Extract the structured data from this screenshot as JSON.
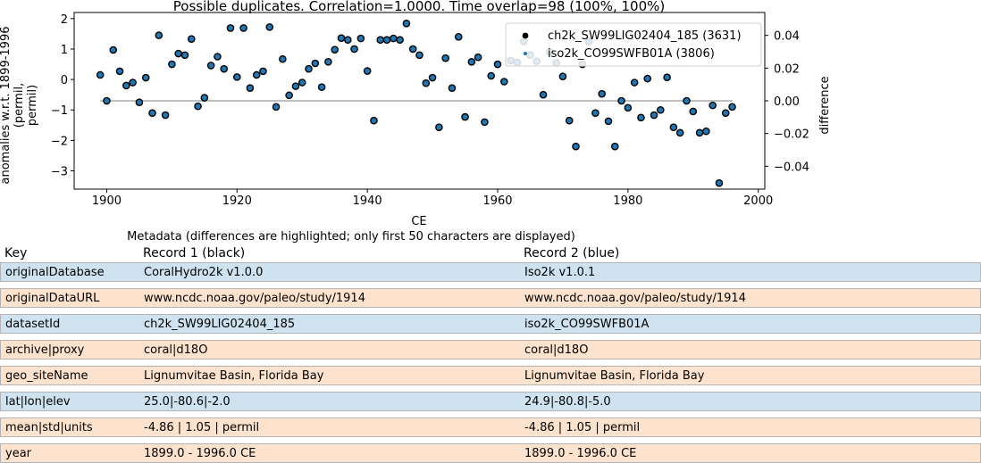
{
  "chart_data": {
    "type": "scatter",
    "title": "Possible duplicates. Correlation=1.0000. Time overlap=98 (100%, 100%)",
    "xlabel": "CE",
    "ylabel": "anomalies w.r.t. 1899-1996 (permil, permil)",
    "ylabel_right": "difference",
    "xlim": [
      1895,
      2001
    ],
    "ylim": [
      -3.6,
      2.2
    ],
    "ylim_right": [
      -0.054,
      0.054
    ],
    "x_ticks": [
      1900,
      1920,
      1940,
      1960,
      1980,
      2000
    ],
    "y_ticks": [
      2,
      1,
      0,
      -1,
      -2,
      -3
    ],
    "y_ticks_right": [
      0.04,
      0.02,
      0.0,
      -0.02,
      -0.04
    ],
    "y_tick_labels_right": [
      "0.04",
      "0.02",
      "0.00",
      "−0.02",
      "−0.04"
    ],
    "legend_position": "top-right",
    "colors": {
      "record1": "#000000",
      "record2": "#1f77b4",
      "difference_line": "#aaaaaa"
    },
    "series": [
      {
        "name": "ch2k_SW99LIG02404_185 (3631)",
        "marker": "circle-black",
        "x": [
          1899,
          1900,
          1901,
          1902,
          1903,
          1904,
          1905,
          1906,
          1907,
          1908,
          1909,
          1910,
          1911,
          1912,
          1913,
          1914,
          1915,
          1916,
          1917,
          1918,
          1919,
          1920,
          1921,
          1922,
          1923,
          1924,
          1925,
          1926,
          1927,
          1928,
          1929,
          1930,
          1931,
          1932,
          1933,
          1934,
          1935,
          1936,
          1937,
          1938,
          1939,
          1940,
          1941,
          1942,
          1943,
          1944,
          1945,
          1946,
          1947,
          1948,
          1949,
          1950,
          1951,
          1952,
          1953,
          1954,
          1955,
          1956,
          1957,
          1958,
          1959,
          1960,
          1961,
          1962,
          1963,
          1964,
          1965,
          1966,
          1967,
          1968,
          1969,
          1970,
          1971,
          1972,
          1973,
          1974,
          1975,
          1976,
          1977,
          1978,
          1979,
          1980,
          1981,
          1982,
          1983,
          1984,
          1985,
          1986,
          1987,
          1988,
          1989,
          1990,
          1991,
          1992,
          1993,
          1994,
          1995,
          1996
        ],
        "y": [
          0.15,
          -0.7,
          0.97,
          0.27,
          -0.2,
          -0.1,
          -0.75,
          0.06,
          -1.1,
          1.45,
          -1.17,
          0.5,
          0.85,
          0.8,
          1.33,
          -0.88,
          -0.6,
          0.46,
          0.75,
          0.35,
          1.69,
          0.08,
          1.69,
          -0.28,
          0.15,
          0.27,
          1.72,
          -0.9,
          0.67,
          -0.52,
          -0.22,
          -0.1,
          0.35,
          0.53,
          -0.25,
          0.58,
          0.98,
          1.36,
          1.3,
          1.0,
          1.35,
          0.28,
          -1.35,
          1.3,
          1.3,
          1.35,
          1.3,
          1.84,
          1.0,
          0.8,
          -0.12,
          0.06,
          -1.57,
          0.7,
          -0.28,
          1.4,
          -1.23,
          0.58,
          0.73,
          -1.4,
          0.12,
          0.5,
          -0.07,
          0.62,
          0.56,
          1.25,
          0.8,
          0.6,
          -0.5,
          0.9,
          0.55,
          0.1,
          -1.35,
          -2.2,
          0.5,
          1.25,
          -1.1,
          -0.47,
          -1.37,
          -2.2,
          -0.7,
          -0.93,
          -0.1,
          -1.25,
          0.03,
          -1.17,
          -1.0,
          0.07,
          -1.57,
          -1.75,
          -0.7,
          -1.05,
          -1.75,
          -1.7,
          -0.85,
          -3.4,
          -1.1,
          -0.9
        ]
      },
      {
        "name": "iso2k_CO99SWFB01A (3806)",
        "marker": "circle-blue",
        "same_as": "ch2k_SW99LIG02404_185 (3631)"
      }
    ]
  },
  "metadata": {
    "caption": "Metadata (differences are highlighted; only first 50 characters are displayed)",
    "headers": {
      "key": "Key",
      "record1": "Record 1 (black)",
      "record2": "Record 2 (blue)"
    },
    "row_colors": {
      "differs": "#cfe2ef",
      "same": "#fde3cd"
    },
    "rows": [
      {
        "key": "originalDatabase",
        "r1": "CoralHydro2k v1.0.0",
        "r2": "Iso2k v1.0.1",
        "differs": true
      },
      {
        "key": "originalDataURL",
        "r1": "www.ncdc.noaa.gov/paleo/study/1914",
        "r2": "www.ncdc.noaa.gov/paleo/study/1914",
        "differs": false
      },
      {
        "key": "datasetId",
        "r1": "ch2k_SW99LIG02404_185",
        "r2": "iso2k_CO99SWFB01A",
        "differs": true
      },
      {
        "key": "archive|proxy",
        "r1": "coral|d18O",
        "r2": "coral|d18O",
        "differs": false
      },
      {
        "key": "geo_siteName",
        "r1": "Lignumvitae Basin, Florida Bay",
        "r2": "Lignumvitae Basin, Florida Bay",
        "differs": false
      },
      {
        "key": "lat|lon|elev",
        "r1": "25.0|-80.6|-2.0",
        "r2": "24.9|-80.8|-5.0",
        "differs": true
      },
      {
        "key": "mean|std|units",
        "r1": "-4.86 | 1.05 | permil",
        "r2": "-4.86 | 1.05 | permil",
        "differs": false
      },
      {
        "key": "year",
        "r1": "1899.0 - 1996.0 CE",
        "r2": "1899.0 - 1996.0 CE",
        "differs": false
      }
    ]
  }
}
